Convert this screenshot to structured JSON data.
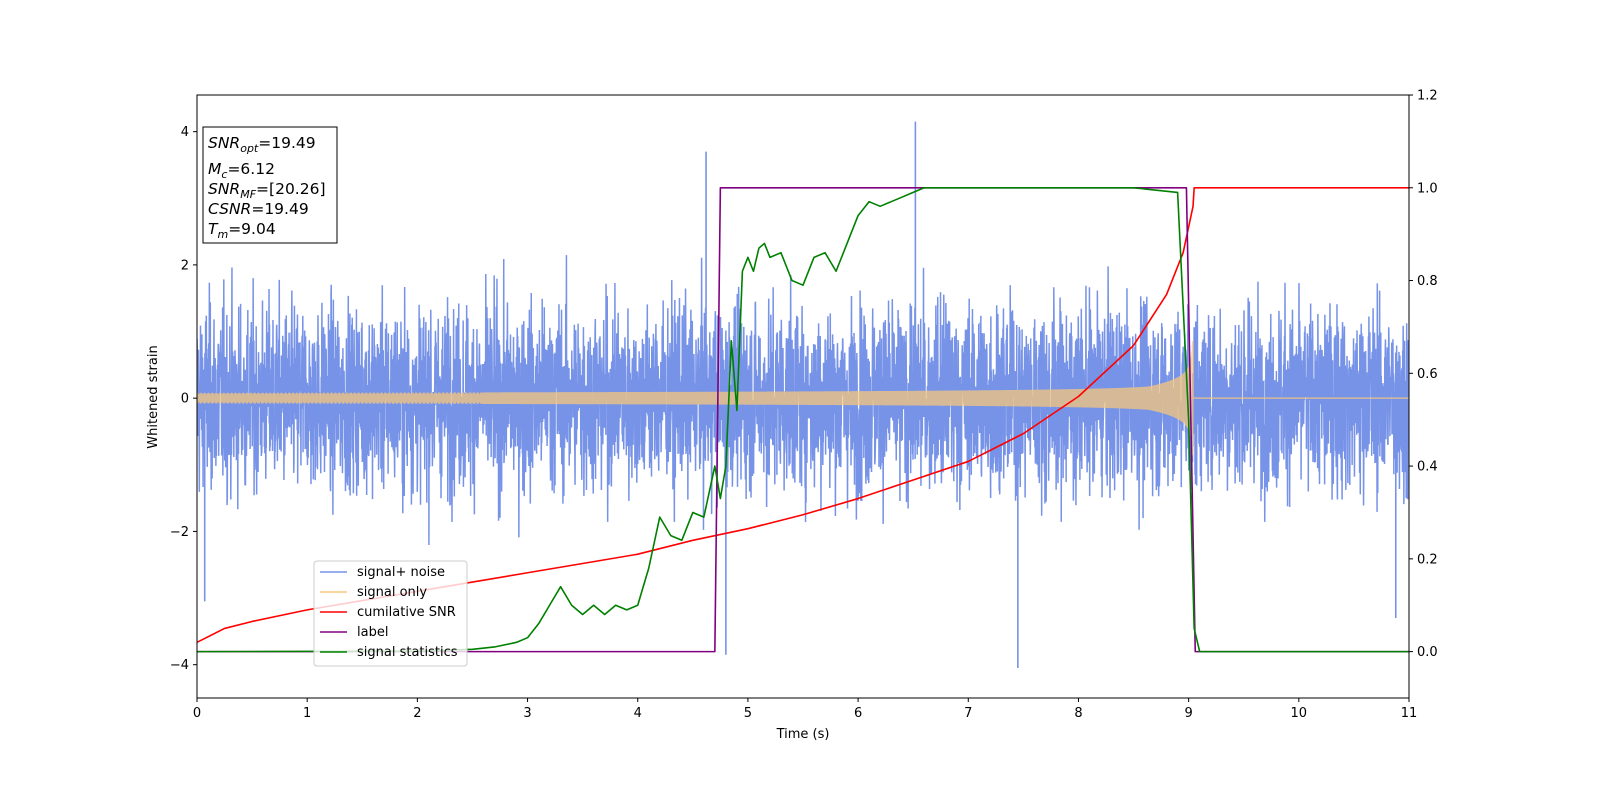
{
  "chart_data": {
    "type": "line",
    "title": "",
    "xlabel": "Time (s)",
    "ylabel": "Whitened strain",
    "y2label": "",
    "xlim": [
      0,
      11
    ],
    "ylim": [
      -4.5,
      4.55
    ],
    "y2lim": [
      -0.1,
      1.2
    ],
    "xticks": [
      0,
      1,
      2,
      3,
      4,
      5,
      6,
      7,
      8,
      9,
      10,
      11
    ],
    "yticks": [
      -4,
      -2,
      0,
      2,
      4
    ],
    "y2ticks": [
      0.0,
      0.2,
      0.4,
      0.6,
      0.8,
      1.0,
      1.2
    ],
    "x_tick_labels": [
      "0",
      "1",
      "2",
      "3",
      "4",
      "5",
      "6",
      "7",
      "8",
      "9",
      "10",
      "11"
    ],
    "y_tick_labels": [
      "−4",
      "−2",
      "0",
      "2",
      "4"
    ],
    "y2_tick_labels": [
      "0.0",
      "0.2",
      "0.4",
      "0.6",
      "0.8",
      "1.0",
      "1.2"
    ],
    "grid": false,
    "legend_position": "lower-left",
    "stats_box": {
      "position": "top-left",
      "lines": [
        {
          "symbol": "SNR",
          "sub": "opt",
          "value": "=19.49"
        },
        {
          "symbol": "M",
          "sub": "c",
          "value": "=6.12"
        },
        {
          "symbol": "SNR",
          "sub": "MF",
          "value": "=[20.26]"
        },
        {
          "symbol": "CSNR",
          "sub": "",
          "value": "=19.49"
        },
        {
          "symbol": "T",
          "sub": "m",
          "value": "=9.04"
        }
      ]
    },
    "series": [
      {
        "name": "signal+ noise",
        "axis": "left",
        "color": "#7793e8",
        "style": "noise",
        "noise_std": 0.95,
        "noise_peak_max": 4.15,
        "noise_peak_min": -4.05,
        "x_range": [
          0,
          11
        ]
      },
      {
        "name": "signal only",
        "axis": "left",
        "color": "#f5c77e",
        "style": "chirp",
        "amplitude_start": 0.08,
        "amplitude_end": 1.2,
        "merger_time": 9.04,
        "x_range": [
          0,
          11
        ]
      },
      {
        "name": "cumilative SNR",
        "axis": "right",
        "color": "#ff0000",
        "x": [
          0,
          0.25,
          0.5,
          1.0,
          1.5,
          2.0,
          2.5,
          3.0,
          3.5,
          4.0,
          4.5,
          5.0,
          5.5,
          6.0,
          6.5,
          7.0,
          7.5,
          8.0,
          8.5,
          8.8,
          8.95,
          9.04,
          9.05,
          11.0
        ],
        "y": [
          0.02,
          0.05,
          0.065,
          0.09,
          0.11,
          0.13,
          0.15,
          0.17,
          0.19,
          0.21,
          0.24,
          0.265,
          0.295,
          0.33,
          0.37,
          0.41,
          0.47,
          0.55,
          0.66,
          0.77,
          0.86,
          0.96,
          1.0,
          1.0
        ]
      },
      {
        "name": "label",
        "axis": "right",
        "color": "#800080",
        "x": [
          0,
          4.7,
          4.75,
          8.98,
          9.06,
          11.0
        ],
        "y": [
          0,
          0,
          1.0,
          1.0,
          0,
          0
        ]
      },
      {
        "name": "signal statistics",
        "axis": "right",
        "color": "#008000",
        "x": [
          0,
          2.0,
          2.5,
          2.7,
          2.9,
          3.0,
          3.1,
          3.2,
          3.3,
          3.4,
          3.5,
          3.6,
          3.7,
          3.8,
          3.9,
          4.0,
          4.1,
          4.2,
          4.3,
          4.4,
          4.5,
          4.6,
          4.7,
          4.75,
          4.8,
          4.85,
          4.9,
          4.95,
          5.0,
          5.05,
          5.1,
          5.15,
          5.2,
          5.3,
          5.4,
          5.5,
          5.6,
          5.7,
          5.8,
          5.9,
          6.0,
          6.1,
          6.2,
          6.3,
          6.4,
          6.5,
          6.6,
          6.8,
          7.0,
          8.5,
          8.9,
          9.0,
          9.05,
          9.1,
          11.0
        ],
        "y": [
          0,
          0.001,
          0.005,
          0.01,
          0.02,
          0.03,
          0.06,
          0.1,
          0.14,
          0.1,
          0.08,
          0.1,
          0.08,
          0.1,
          0.09,
          0.1,
          0.18,
          0.29,
          0.25,
          0.24,
          0.3,
          0.29,
          0.4,
          0.33,
          0.4,
          0.67,
          0.52,
          0.82,
          0.85,
          0.82,
          0.87,
          0.88,
          0.85,
          0.86,
          0.8,
          0.79,
          0.85,
          0.86,
          0.82,
          0.88,
          0.94,
          0.97,
          0.96,
          0.97,
          0.98,
          0.99,
          1.0,
          1.0,
          1.0,
          1.0,
          0.99,
          0.5,
          0.05,
          0.0,
          0.0
        ]
      }
    ]
  }
}
